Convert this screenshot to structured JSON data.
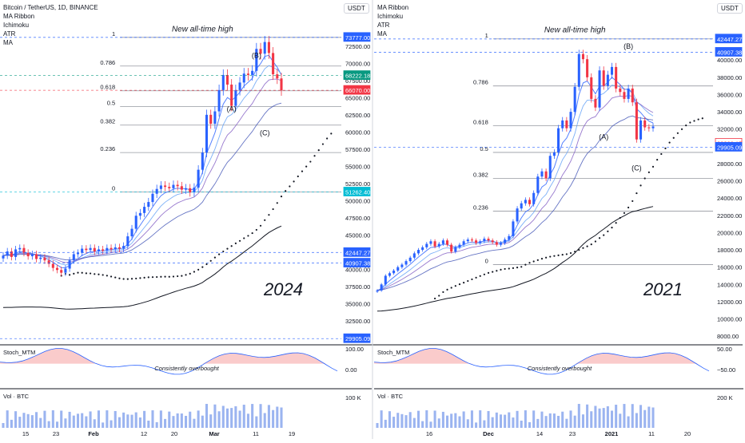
{
  "left_panel": {
    "legend": [
      "Bitcoin / TetherUS, 1D, BINANCE",
      "MA Ribbon",
      "Ichimoku",
      "ATR",
      "MA"
    ],
    "currency": "USDT",
    "chart_data": {
      "type": "candlestick",
      "year_label": "2024",
      "ylim": [
        29000,
        75500
      ],
      "price_ticks": [
        30000,
        32500,
        35000,
        37500,
        40000,
        42500,
        45000,
        47500,
        50000,
        52500,
        55000,
        57500,
        60000,
        62500,
        65000,
        67500,
        70000,
        72500
      ],
      "price_badges": [
        {
          "label": "73777.00",
          "value": 73777,
          "color": "#2962ff"
        },
        {
          "label": "68222.18",
          "value": 68222,
          "color": "#089981"
        },
        {
          "label": "66070.00",
          "value": 66070,
          "color": "#f23645"
        },
        {
          "label": "51262.40",
          "value": 51262,
          "color": "#00bcd4"
        },
        {
          "label": "42447.27",
          "value": 42447,
          "color": "#2962ff"
        },
        {
          "label": "40907.38",
          "value": 40907,
          "color": "#2962ff"
        },
        {
          "label": "29905.09",
          "value": 29905,
          "color": "#2962ff"
        }
      ],
      "fib_levels": [
        {
          "label": "1",
          "value": 73777
        },
        {
          "label": "0.786",
          "value": 69600
        },
        {
          "label": "0.618",
          "value": 66000
        },
        {
          "label": "0.5",
          "value": 63700
        },
        {
          "label": "0.382",
          "value": 61000
        },
        {
          "label": "0.236",
          "value": 57000
        },
        {
          "label": "0",
          "value": 51250
        }
      ],
      "annotations": [
        {
          "text": "New all-time high",
          "value": 74600
        },
        {
          "text": "(B)",
          "value": 70800
        },
        {
          "text": "(A)",
          "value": 63000
        },
        {
          "text": "(C)",
          "value": 59500
        }
      ],
      "x_ticks": [
        "15",
        "23",
        "Feb",
        "12",
        "20",
        "Mar",
        "11",
        "19"
      ],
      "closes": [
        42000,
        42600,
        41800,
        42900,
        43100,
        42400,
        41900,
        42200,
        41500,
        41700,
        41300,
        40800,
        40200,
        39900,
        39500,
        40100,
        41300,
        42200,
        42400,
        43000,
        42800,
        43100,
        42600,
        42900,
        42700,
        43100,
        42900,
        43200,
        43000,
        43400,
        44800,
        45900,
        47800,
        48200,
        49100,
        49800,
        51000,
        51700,
        52200,
        52000,
        51800,
        52300,
        52100,
        51600,
        51800,
        51200,
        51900,
        54500,
        57000,
        62500,
        61200,
        63000,
        66100,
        68300,
        66900,
        63800,
        66100,
        67200,
        68500,
        68300,
        68900,
        72100,
        71400,
        73100,
        71500,
        68400,
        67800,
        66070
      ]
    },
    "oscillator": {
      "label": "Stoch_MTM",
      "note": "Consistently overbought",
      "ticks": [
        "100.00",
        "0.00"
      ]
    },
    "volume": {
      "label": "Vol · BTC",
      "ticks": [
        "100 K"
      ]
    }
  },
  "right_panel": {
    "legend": [
      "MA Ribbon",
      "Ichimoku",
      "ATR",
      "MA"
    ],
    "currency": "USDT",
    "chart_data": {
      "type": "candlestick",
      "year_label": "2021",
      "ylim": [
        7000,
        44000
      ],
      "price_ticks": [
        8000,
        10000,
        12000,
        14000,
        16000,
        18000,
        20000,
        22000,
        24000,
        26000,
        28000,
        30000,
        32000,
        34000,
        36000,
        38000,
        40000
      ],
      "price_badges": [
        {
          "label": "42447.27",
          "value": 42447,
          "color": "#2962ff"
        },
        {
          "label": "40907.38",
          "value": 40907,
          "color": "#2962ff"
        },
        {
          "label": "30366.15",
          "value": 30366,
          "color": "#ffffff"
        },
        {
          "label": "29905.09",
          "value": 29905,
          "color": "#2962ff"
        }
      ],
      "fib_levels": [
        {
          "label": "1",
          "value": 42450
        },
        {
          "label": "0.786",
          "value": 37000
        },
        {
          "label": "0.618",
          "value": 32400
        },
        {
          "label": "0.5",
          "value": 29300
        },
        {
          "label": "0.382",
          "value": 26300
        },
        {
          "label": "0.236",
          "value": 22500
        },
        {
          "label": "0",
          "value": 16300
        }
      ],
      "annotations": [
        {
          "text": "New all-time high",
          "value": 43200
        },
        {
          "text": "(B)",
          "value": 41300
        },
        {
          "text": "(A)",
          "value": 30800
        },
        {
          "text": "(C)",
          "value": 27200
        }
      ],
      "x_ticks": [
        "16",
        "Dec",
        "14",
        "23",
        "2021",
        "11",
        "20"
      ],
      "closes": [
        13300,
        14000,
        15000,
        15300,
        15600,
        16000,
        16300,
        16700,
        17100,
        17600,
        18000,
        18300,
        18700,
        19000,
        18400,
        18700,
        19100,
        18600,
        17800,
        18300,
        18600,
        19000,
        19200,
        19100,
        18800,
        19000,
        19300,
        19100,
        18900,
        18600,
        18800,
        19200,
        19600,
        21300,
        22800,
        23400,
        23800,
        23300,
        24600,
        26500,
        27100,
        26300,
        28900,
        29300,
        32100,
        33000,
        32100,
        34000,
        36900,
        40700,
        40100,
        38000,
        35500,
        34500,
        38800,
        37000,
        38300,
        39200,
        36700,
        36300,
        35500,
        36700,
        35100,
        30800,
        33000,
        32200,
        32100,
        32300
      ]
    },
    "oscillator": {
      "label": "Stoch_MTM",
      "note": "Consistently overbought",
      "ticks": [
        "50.00",
        "−50.00"
      ]
    },
    "volume": {
      "label": "Vol · BTC",
      "ticks": [
        "200 K"
      ]
    }
  }
}
